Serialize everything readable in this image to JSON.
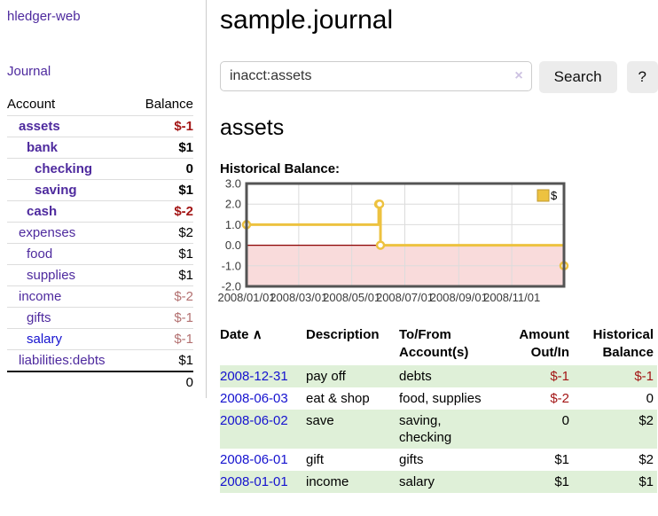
{
  "app": {
    "title": "hledger-web"
  },
  "sidebar": {
    "journal_label": "Journal",
    "accounts_table": {
      "headers": {
        "account": "Account",
        "balance": "Balance"
      },
      "rows": [
        {
          "name": "assets",
          "balance": "$-1",
          "depth": 1,
          "bold": true,
          "tone": "neg",
          "link": "purple"
        },
        {
          "name": "bank",
          "balance": "$1",
          "depth": 2,
          "bold": true,
          "tone": "",
          "link": "purple"
        },
        {
          "name": "checking",
          "balance": "0",
          "depth": 3,
          "bold": true,
          "tone": "",
          "link": "purple"
        },
        {
          "name": "saving",
          "balance": "$1",
          "depth": 3,
          "bold": true,
          "tone": "",
          "link": "purple"
        },
        {
          "name": "cash",
          "balance": "$-2",
          "depth": 2,
          "bold": true,
          "tone": "neg",
          "link": "purple"
        },
        {
          "name": "expenses",
          "balance": "$2",
          "depth": 1,
          "bold": false,
          "tone": "",
          "link": "purple"
        },
        {
          "name": "food",
          "balance": "$1",
          "depth": 2,
          "bold": false,
          "tone": "",
          "link": "purple"
        },
        {
          "name": "supplies",
          "balance": "$1",
          "depth": 2,
          "bold": false,
          "tone": "",
          "link": "purple"
        },
        {
          "name": "income",
          "balance": "$-2",
          "depth": 1,
          "bold": false,
          "tone": "neg-muted",
          "link": "purple"
        },
        {
          "name": "gifts",
          "balance": "$-1",
          "depth": 2,
          "bold": false,
          "tone": "neg-muted",
          "link": "purple"
        },
        {
          "name": "salary",
          "balance": "$-1",
          "depth": 2,
          "bold": false,
          "tone": "neg-muted",
          "link": "blue"
        },
        {
          "name": "liabilities:debts",
          "balance": "$1",
          "depth": 1,
          "bold": false,
          "tone": "",
          "link": "purple"
        }
      ],
      "total": "0"
    }
  },
  "main": {
    "title": "sample.journal",
    "search": {
      "value": "inacct:assets",
      "clear_icon": "×",
      "button_label": "Search",
      "help_label": "?"
    },
    "account_heading": "assets",
    "chart_label": "Historical Balance:"
  },
  "chart_data": {
    "type": "line",
    "step": true,
    "title": "Historical Balance",
    "series": [
      {
        "name": "$",
        "color": "#edc240",
        "points": [
          [
            "2008-01-01",
            1
          ],
          [
            "2008-06-01",
            2
          ],
          [
            "2008-06-02",
            2
          ],
          [
            "2008-06-03",
            0
          ],
          [
            "2008-12-31",
            -1
          ]
        ]
      }
    ],
    "xlim": [
      "2008-01-01",
      "2008-12-31"
    ],
    "ylim": [
      -2,
      3
    ],
    "x_ticks": [
      {
        "date": "2008-01-01",
        "label": "2008/01/01"
      },
      {
        "date": "2008-03-01",
        "label": "2008/03/01"
      },
      {
        "date": "2008-05-01",
        "label": "2008/05/01"
      },
      {
        "date": "2008-07-01",
        "label": "2008/07/01"
      },
      {
        "date": "2008-09-01",
        "label": "2008/09/01"
      },
      {
        "date": "2008-11-01",
        "label": "2008/11/01"
      }
    ],
    "y_ticks": [
      {
        "value": 3,
        "label": "3.0"
      },
      {
        "value": 2,
        "label": "2.0"
      },
      {
        "value": 1,
        "label": "1.0"
      },
      {
        "value": 0,
        "label": "0.0"
      },
      {
        "value": -1,
        "label": "-1.0"
      },
      {
        "value": -2,
        "label": "-2.0"
      }
    ],
    "grid": true,
    "negative_region_color": "#f9dbdb",
    "zero_line_color": "#8b0000",
    "grid_color": "#dcdcdc",
    "border_color": "#545454",
    "legend": {
      "label": "$",
      "position": "top-right"
    }
  },
  "register_table": {
    "headers": {
      "date": "Date",
      "sort_icon": "∧",
      "description": "Description",
      "accounts": "To/From Account(s)",
      "amount": "Amount Out/In",
      "balance": "Historical Balance"
    },
    "rows": [
      {
        "date": "2008-12-31",
        "description": "pay off",
        "accounts": "debts",
        "amount": "$-1",
        "amount_tone": "neg",
        "balance": "$-1",
        "balance_tone": "neg"
      },
      {
        "date": "2008-06-03",
        "description": "eat & shop",
        "accounts": "food, supplies",
        "amount": "$-2",
        "amount_tone": "neg",
        "balance": "0",
        "balance_tone": ""
      },
      {
        "date": "2008-06-02",
        "description": "save",
        "accounts": "saving, checking",
        "amount": "0",
        "amount_tone": "",
        "balance": "$2",
        "balance_tone": ""
      },
      {
        "date": "2008-06-01",
        "description": "gift",
        "accounts": "gifts",
        "amount": "$1",
        "amount_tone": "",
        "balance": "$2",
        "balance_tone": ""
      },
      {
        "date": "2008-01-01",
        "description": "income",
        "accounts": "salary",
        "amount": "$1",
        "amount_tone": "",
        "balance": "$1",
        "balance_tone": ""
      }
    ]
  }
}
